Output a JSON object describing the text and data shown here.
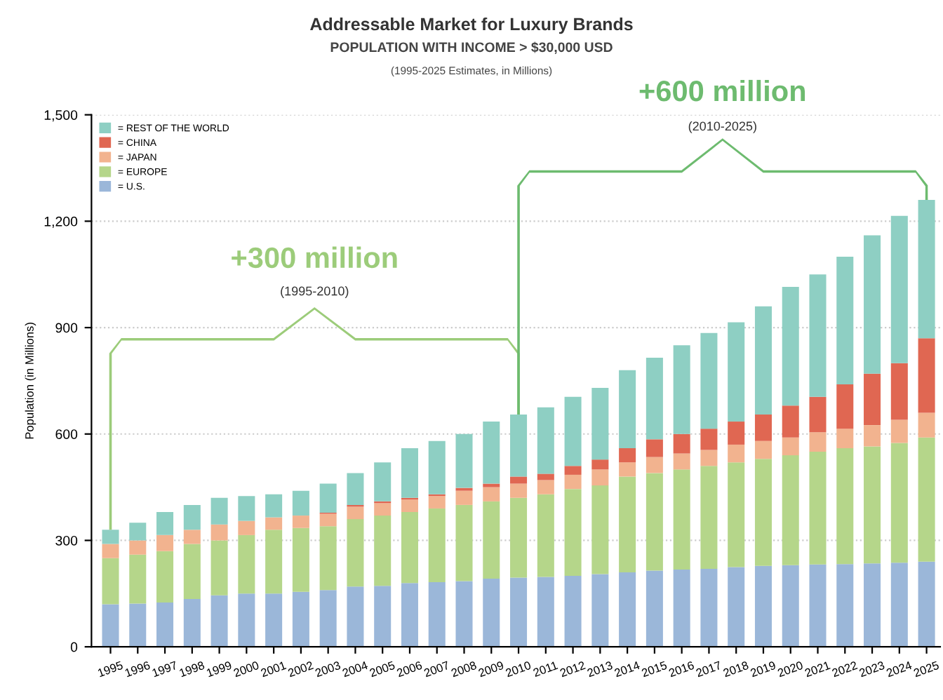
{
  "chart_data": {
    "type": "bar",
    "stacked": true,
    "title": "Addressable Market for Luxury Brands",
    "subtitle": "POPULATION WITH INCOME > $30,000 USD",
    "ylabel": "Population (in Millions)",
    "categories": [
      "1995",
      "1996",
      "1997",
      "1998",
      "1999",
      "2000",
      "2001",
      "2002",
      "2003",
      "2004",
      "2005",
      "2006",
      "2007",
      "2008",
      "2009",
      "2010",
      "2011",
      "2012",
      "2013",
      "2014",
      "2015",
      "2016",
      "2017",
      "2018",
      "2019",
      "2020",
      "2021",
      "2022",
      "2023",
      "2024",
      "2025"
    ],
    "series": [
      {
        "name": "= U.S.",
        "color": "#9bb7d9",
        "values": [
          120,
          122,
          125,
          135,
          145,
          150,
          150,
          155,
          160,
          170,
          172,
          180,
          182,
          185,
          192,
          195,
          197,
          200,
          205,
          210,
          215,
          218,
          220,
          225,
          228,
          230,
          232,
          233,
          235,
          237,
          240
        ]
      },
      {
        "name": "= EUROPE",
        "color": "#b5d68a",
        "values": [
          130,
          138,
          145,
          155,
          155,
          165,
          180,
          180,
          180,
          190,
          198,
          200,
          208,
          215,
          218,
          225,
          233,
          245,
          250,
          270,
          275,
          282,
          290,
          295,
          302,
          310,
          318,
          327,
          330,
          338,
          350
        ]
      },
      {
        "name": "= JAPAN",
        "color": "#f2b38f",
        "values": [
          40,
          40,
          45,
          40,
          45,
          40,
          35,
          35,
          35,
          35,
          35,
          35,
          35,
          40,
          40,
          40,
          40,
          40,
          45,
          40,
          45,
          45,
          45,
          50,
          50,
          50,
          55,
          55,
          60,
          65,
          70
        ]
      },
      {
        "name": "= CHINA",
        "color": "#e06752",
        "values": [
          0,
          0,
          0,
          0,
          0,
          0,
          0,
          0,
          3,
          5,
          5,
          5,
          5,
          8,
          10,
          20,
          18,
          25,
          28,
          40,
          50,
          55,
          60,
          65,
          75,
          90,
          100,
          125,
          145,
          160,
          210
        ]
      },
      {
        "name": "= REST OF THE WORLD",
        "color": "#8ecfc3",
        "values": [
          40,
          50,
          65,
          70,
          75,
          70,
          65,
          70,
          82,
          90,
          110,
          140,
          150,
          152,
          175,
          175,
          187,
          195,
          202,
          220,
          230,
          250,
          270,
          280,
          305,
          335,
          345,
          360,
          390,
          415,
          390
        ]
      }
    ],
    "ylim": [
      0,
      1500
    ],
    "yticks": [
      0,
      300,
      600,
      900,
      {
        "value": 1200,
        "label": "1,200"
      },
      {
        "value": 1500,
        "label": "1,500"
      }
    ],
    "grid": "y",
    "legend": "top left",
    "annotations": [
      "(1995-2025 Estimates, in Millions)",
      "+300 million",
      "(1995-2010)",
      "+600 million",
      "(2010-2025)"
    ]
  }
}
